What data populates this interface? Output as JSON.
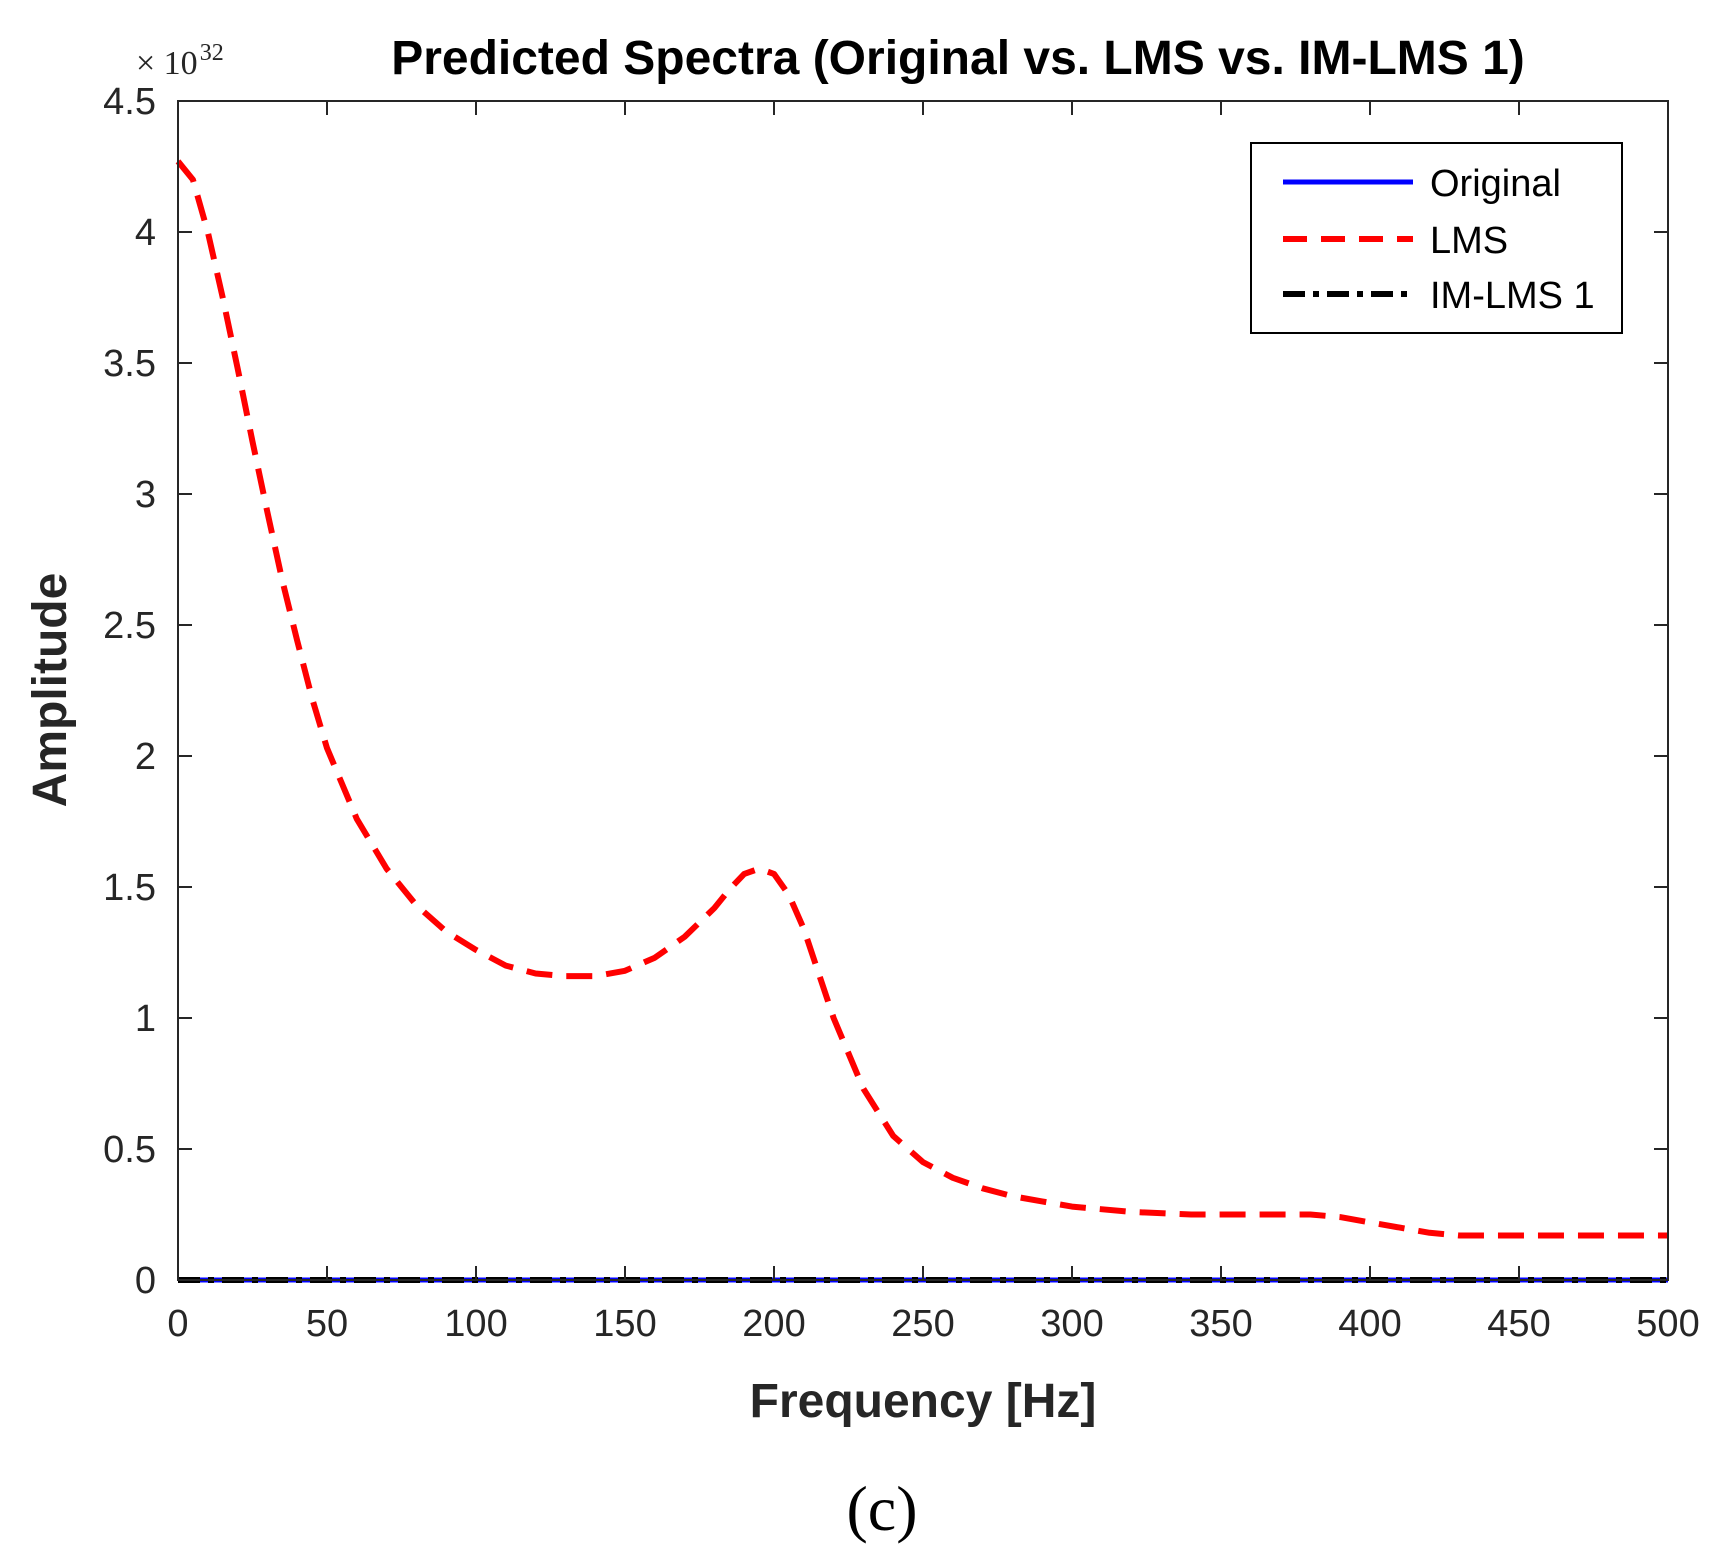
{
  "chart_data": {
    "type": "line",
    "title": "Predicted Spectra (Original vs. LMS vs. IM-LMS 1)",
    "multiplier_label": "× 10",
    "multiplier_exponent": "32",
    "xlabel": "Frequency [Hz]",
    "ylabel": "Amplitude",
    "xlim": [
      0,
      500
    ],
    "ylim": [
      0,
      4.5
    ],
    "xticks": [
      0,
      50,
      100,
      150,
      200,
      250,
      300,
      350,
      400,
      450,
      500
    ],
    "xtick_labels": [
      "0",
      "50",
      "100",
      "150",
      "200",
      "250",
      "300",
      "350",
      "400",
      "450",
      "500"
    ],
    "yticks": [
      0,
      0.5,
      1,
      1.5,
      2,
      2.5,
      3,
      3.5,
      4,
      4.5
    ],
    "ytick_labels": [
      "0",
      "0.5",
      "1",
      "1.5",
      "2",
      "2.5",
      "3",
      "3.5",
      "4",
      "4.5"
    ],
    "grid": false,
    "legend_position": "top-right",
    "series": [
      {
        "name": "Original",
        "color": "#0000ff",
        "style": "solid",
        "x": [
          0,
          500
        ],
        "y": [
          0,
          0
        ]
      },
      {
        "name": "LMS",
        "color": "#ff0000",
        "style": "dashed",
        "x": [
          0,
          5,
          10,
          15,
          20,
          25,
          30,
          35,
          40,
          45,
          50,
          60,
          70,
          80,
          90,
          100,
          110,
          120,
          130,
          140,
          150,
          160,
          170,
          180,
          185,
          190,
          195,
          200,
          205,
          210,
          215,
          220,
          230,
          240,
          250,
          260,
          270,
          280,
          290,
          300,
          320,
          340,
          360,
          380,
          390,
          400,
          410,
          420,
          430,
          450,
          475,
          500
        ],
        "y": [
          4.27,
          4.2,
          4.0,
          3.75,
          3.48,
          3.2,
          2.93,
          2.67,
          2.44,
          2.22,
          2.03,
          1.76,
          1.57,
          1.43,
          1.33,
          1.26,
          1.2,
          1.17,
          1.16,
          1.16,
          1.18,
          1.23,
          1.31,
          1.42,
          1.49,
          1.55,
          1.57,
          1.55,
          1.47,
          1.34,
          1.17,
          1.0,
          0.73,
          0.55,
          0.45,
          0.39,
          0.35,
          0.32,
          0.3,
          0.28,
          0.26,
          0.25,
          0.25,
          0.25,
          0.24,
          0.22,
          0.2,
          0.18,
          0.17,
          0.17,
          0.17,
          0.17
        ]
      },
      {
        "name": "IM-LMS 1",
        "color": "#000000",
        "style": "dashdot",
        "x": [
          0,
          500
        ],
        "y": [
          0,
          0
        ]
      }
    ]
  },
  "caption": "(c)"
}
